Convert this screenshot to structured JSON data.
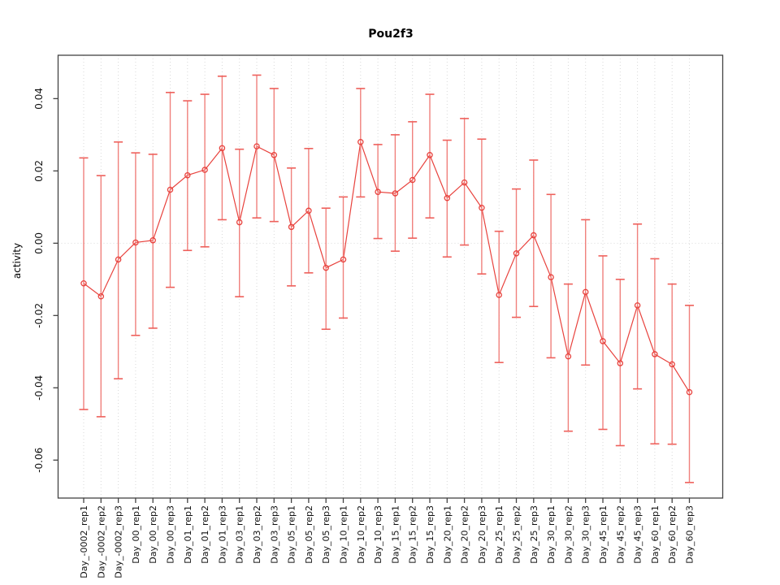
{
  "title": "Pou2f3",
  "y_axis_label": "activity",
  "colors": {
    "series_red": "#e8423d",
    "error_bar": "#f0817d",
    "error_cap": "#ee605b",
    "gridline": "#d9d9d9",
    "zero_line": "#d9d9d9",
    "frame": "#434343",
    "tick": "#434343",
    "tick_text": "#111111"
  },
  "chart_data": {
    "type": "scatter",
    "title": "Pou2f3",
    "xlabel": "",
    "ylabel": "activity",
    "grid": "vertical-dotted-plus-zero-line",
    "legend": "none",
    "marker": "open-circle",
    "line_between_points": true,
    "ylim": [
      -0.0705,
      0.052
    ],
    "yticks": [
      0.04,
      0.02,
      0.0,
      -0.02,
      -0.04,
      -0.06
    ],
    "ytick_labels": [
      "0.04",
      "0.02",
      "0.00",
      "-0.02",
      "-0.04",
      "-0.06"
    ],
    "categories": [
      "Day_-0002_rep1",
      "Day_-0002_rep2",
      "Day_-0002_rep3",
      "Day_00_rep1",
      "Day_00_rep2",
      "Day_00_rep3",
      "Day_01_rep1",
      "Day_01_rep2",
      "Day_01_rep3",
      "Day_03_rep1",
      "Day_03_rep2",
      "Day_03_rep3",
      "Day_05_rep1",
      "Day_05_rep2",
      "Day_05_rep3",
      "Day_10_rep1",
      "Day_10_rep2",
      "Day_10_rep3",
      "Day_15_rep1",
      "Day_15_rep2",
      "Day_15_rep3",
      "Day_20_rep1",
      "Day_20_rep2",
      "Day_20_rep3",
      "Day_25_rep1",
      "Day_25_rep2",
      "Day_25_rep3",
      "Day_30_rep1",
      "Day_30_rep2",
      "Day_30_rep3",
      "Day_45_rep1",
      "Day_45_rep2",
      "Day_45_rep3",
      "Day_60_rep1",
      "Day_60_rep2",
      "Day_60_rep3"
    ],
    "series": [
      {
        "name": "activity",
        "values": [
          -0.0111,
          -0.0147,
          -0.0045,
          0.0002,
          0.0008,
          0.0148,
          0.0188,
          0.0203,
          0.0263,
          0.0058,
          0.0268,
          0.0244,
          0.0045,
          0.009,
          -0.0068,
          -0.0045,
          0.028,
          0.0142,
          0.0138,
          0.0175,
          0.0244,
          0.0125,
          0.0168,
          0.0098,
          -0.0143,
          -0.0028,
          0.0022,
          -0.0094,
          -0.0313,
          -0.0135,
          -0.0271,
          -0.0332,
          -0.0172,
          -0.0307,
          -0.0335,
          -0.0412
        ],
        "error_high": [
          0.0236,
          0.0187,
          0.028,
          0.025,
          0.0246,
          0.0417,
          0.0394,
          0.0412,
          0.0462,
          0.026,
          0.0465,
          0.0428,
          0.0208,
          0.0262,
          0.0097,
          0.0128,
          0.0428,
          0.0273,
          0.03,
          0.0336,
          0.0412,
          0.0285,
          0.0345,
          0.0288,
          0.0033,
          0.015,
          0.023,
          0.0135,
          -0.0113,
          0.0065,
          -0.0035,
          -0.01,
          0.0053,
          -0.0043,
          -0.0113,
          -0.0172
        ],
        "error_low": [
          -0.046,
          -0.048,
          -0.0375,
          -0.0255,
          -0.0235,
          -0.0122,
          -0.002,
          -0.001,
          0.0065,
          -0.0148,
          0.007,
          0.006,
          -0.0118,
          -0.0082,
          -0.0238,
          -0.0207,
          0.0128,
          0.0013,
          -0.0022,
          0.0014,
          0.007,
          -0.0038,
          -0.0005,
          -0.0085,
          -0.033,
          -0.0205,
          -0.0175,
          -0.0317,
          -0.052,
          -0.0337,
          -0.0515,
          -0.056,
          -0.0403,
          -0.0555,
          -0.0556,
          -0.0662
        ]
      }
    ]
  }
}
